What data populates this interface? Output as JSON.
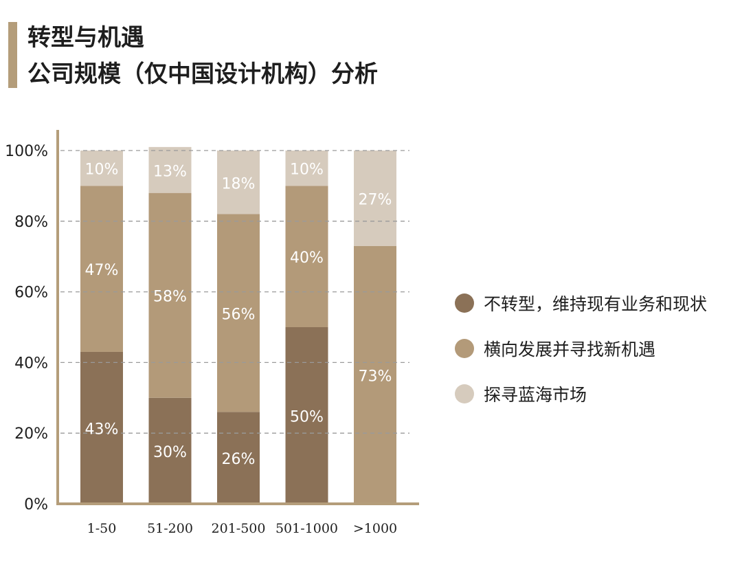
{
  "header": {
    "title_line1": "转型与机遇",
    "title_line2": "公司规模（仅中国设计机构）分析"
  },
  "colors": {
    "accent": "#b49d7a",
    "series_dark": "#8b7157",
    "series_mid": "#b39a79",
    "series_light": "#d6cbbd",
    "grid": "#9a9a9a",
    "axis": "#b49d7a"
  },
  "chart_data": {
    "type": "bar",
    "stacked": true,
    "title": "转型与机遇 公司规模（仅中国设计机构）分析",
    "xlabel": "",
    "ylabel": "",
    "ylim": [
      0,
      100
    ],
    "y_ticks": [
      "0%",
      "20%",
      "40%",
      "60%",
      "80%",
      "100%"
    ],
    "y_tick_values": [
      0,
      20,
      40,
      60,
      80,
      100
    ],
    "grid": true,
    "legend_position": "right",
    "categories": [
      "1-50",
      "51-200",
      "201-500",
      "501-1000",
      ">1000"
    ],
    "series": [
      {
        "name": "不转型，维持现有业务和现状",
        "color": "#8b7157",
        "values": [
          43,
          30,
          26,
          50,
          0
        ],
        "labels": [
          "43%",
          "30%",
          "26%",
          "50%",
          ""
        ]
      },
      {
        "name": "横向发展并寻找新机遇",
        "color": "#b39a79",
        "values": [
          47,
          58,
          56,
          40,
          73
        ],
        "labels": [
          "47%",
          "58%",
          "56%",
          "40%",
          "73%"
        ]
      },
      {
        "name": "探寻蓝海市场",
        "color": "#d6cbbd",
        "values": [
          10,
          13,
          18,
          10,
          27
        ],
        "labels": [
          "10%",
          "13%",
          "18%",
          "10%",
          "27%"
        ]
      }
    ]
  }
}
